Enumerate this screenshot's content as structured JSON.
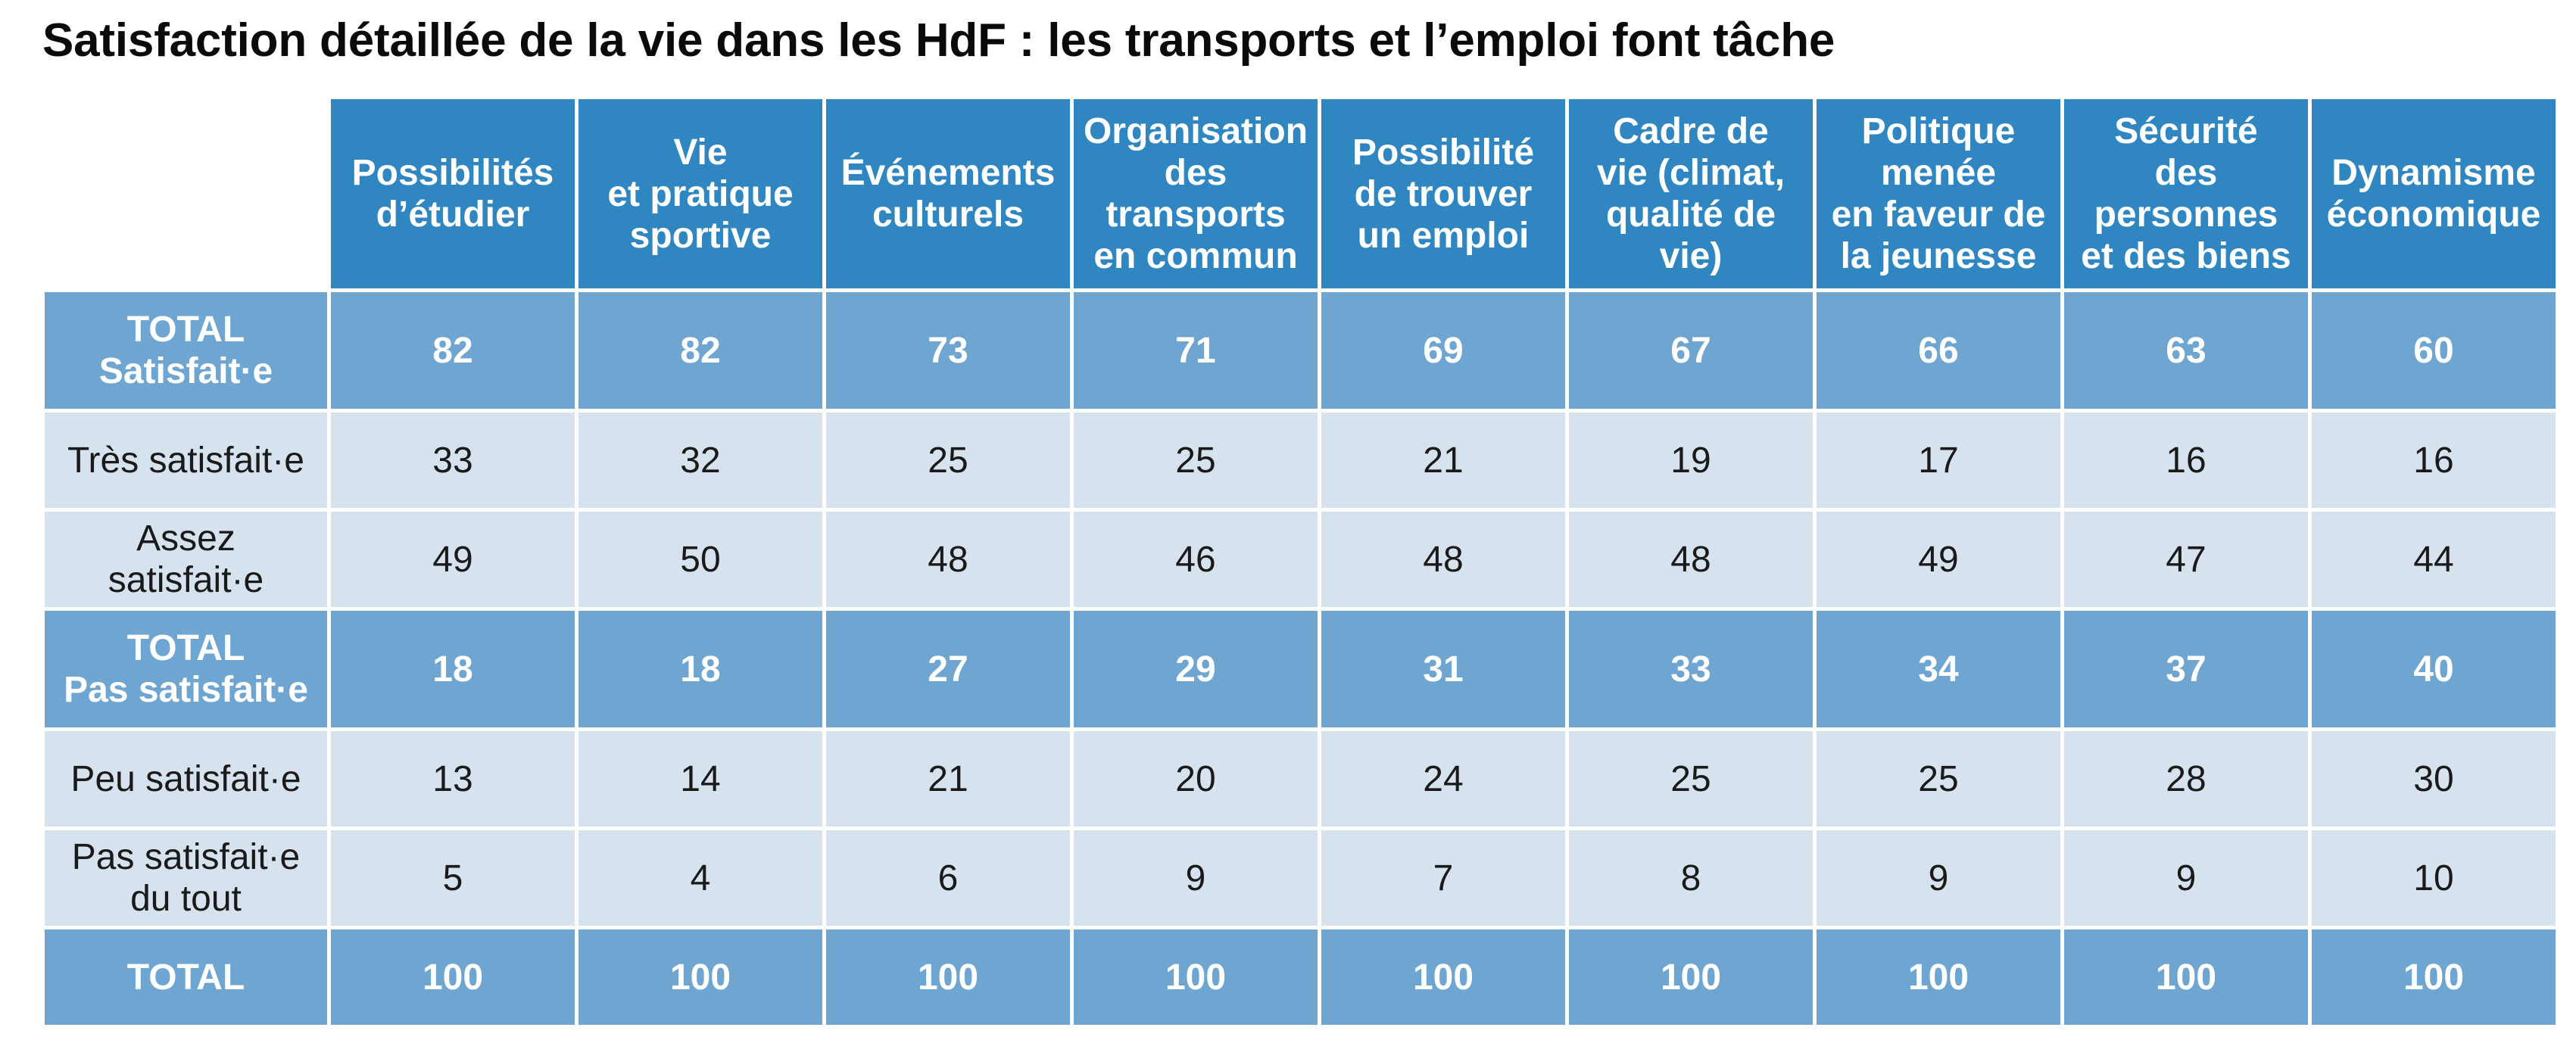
{
  "title": "Satisfaction détaillée de la vie dans les HdF : les transports et l’emploi font tâche",
  "chart_data": {
    "type": "table",
    "title": "Satisfaction détaillée de la vie dans les HdF : les transports et l’emploi font tâche",
    "columns": [
      "Possibilités d’étudier",
      "Vie et pratique sportive",
      "Événements culturels",
      "Organisation des transports en commun",
      "Possibilité de trouver un emploi",
      "Cadre de vie (climat, qualité de vie)",
      "Politique menée en faveur de la jeunesse",
      "Sécurité des personnes et des biens",
      "Dynamisme économique"
    ],
    "columns_display": [
      [
        "Possibilités",
        "d’étudier"
      ],
      [
        "Vie",
        "et pratique",
        "sportive"
      ],
      [
        "Événements",
        "culturels"
      ],
      [
        "Organisation",
        "des",
        "transports",
        "en commun"
      ],
      [
        "Possibilité",
        "de trouver",
        "un emploi"
      ],
      [
        "Cadre de",
        "vie (climat,",
        "qualité de",
        "vie)"
      ],
      [
        "Politique",
        "menée",
        "en faveur de",
        "la jeunesse"
      ],
      [
        "Sécurité",
        "des",
        "personnes",
        "et des biens"
      ],
      [
        "Dynamisme",
        "économique"
      ]
    ],
    "rows": [
      {
        "label": "TOTAL Satisfait·e",
        "label_lines": [
          "TOTAL",
          "Satisfait·e"
        ],
        "kind": "total",
        "values": [
          82,
          82,
          73,
          71,
          69,
          67,
          66,
          63,
          60
        ]
      },
      {
        "label": "Très satisfait·e",
        "label_lines": [
          "Très satisfait·e"
        ],
        "kind": "detail",
        "values": [
          33,
          32,
          25,
          25,
          21,
          19,
          17,
          16,
          16
        ]
      },
      {
        "label": "Assez satisfait·e",
        "label_lines": [
          "Assez",
          "satisfait·e"
        ],
        "kind": "detail",
        "values": [
          49,
          50,
          48,
          46,
          48,
          48,
          49,
          47,
          44
        ]
      },
      {
        "label": "TOTAL Pas satisfait·e",
        "label_lines": [
          "TOTAL",
          "Pas satisfait·e"
        ],
        "kind": "total",
        "values": [
          18,
          18,
          27,
          29,
          31,
          33,
          34,
          37,
          40
        ]
      },
      {
        "label": "Peu satisfait·e",
        "label_lines": [
          "Peu satisfait·e"
        ],
        "kind": "detail",
        "values": [
          13,
          14,
          21,
          20,
          24,
          25,
          25,
          28,
          30
        ]
      },
      {
        "label": "Pas satisfait·e du tout",
        "label_lines": [
          "Pas satisfait·e",
          "du tout"
        ],
        "kind": "detail",
        "values": [
          5,
          4,
          6,
          9,
          7,
          8,
          9,
          9,
          10
        ]
      },
      {
        "label": "TOTAL",
        "label_lines": [
          "TOTAL"
        ],
        "kind": "final",
        "values": [
          100,
          100,
          100,
          100,
          100,
          100,
          100,
          100,
          100
        ]
      }
    ]
  },
  "colors": {
    "header_bg": "#2f86c1",
    "total_row_bg": "#6fa6d1",
    "detail_row_bg": "#d6e3ee",
    "header_text": "#ffffff",
    "title_text": "#0a0a0a"
  }
}
